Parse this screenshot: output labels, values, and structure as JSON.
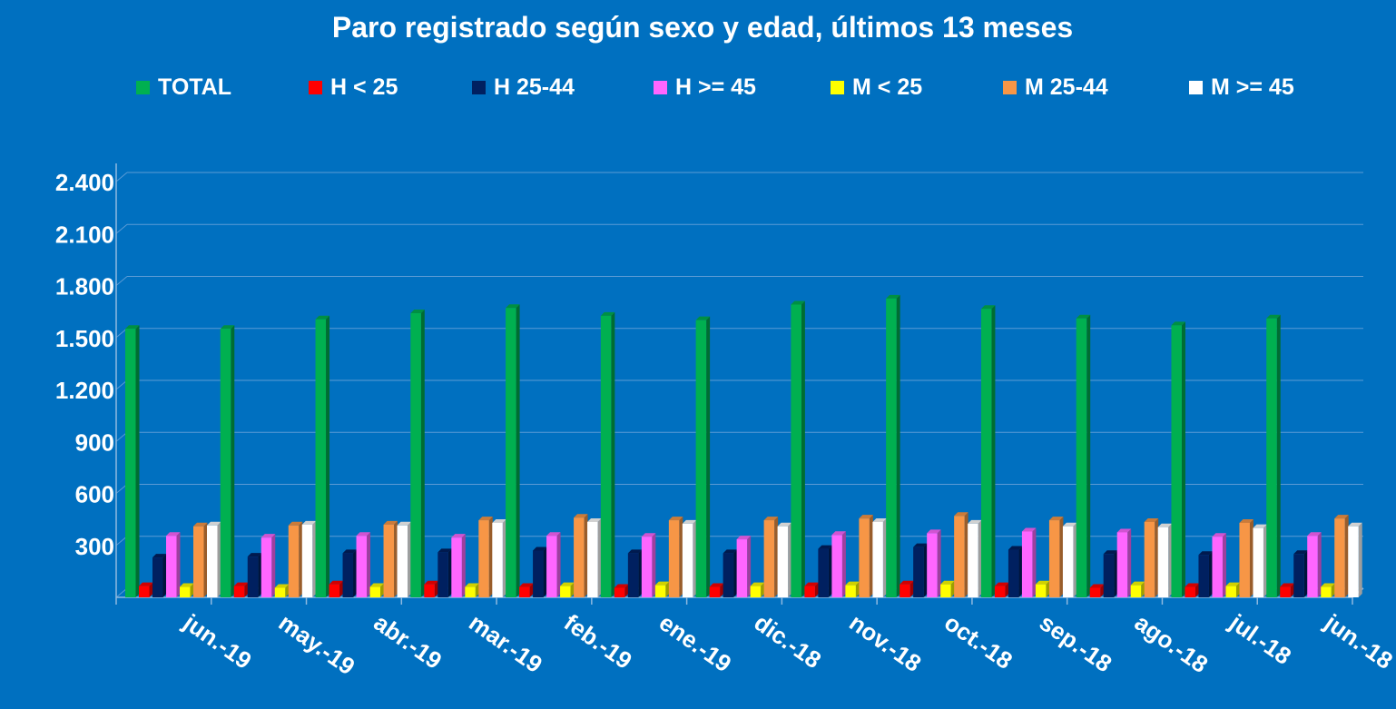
{
  "chart_data": {
    "type": "bar",
    "title": "Paro registrado según sexo y edad, últimos 13 meses",
    "categories": [
      "jun.-19",
      "may.-19",
      "abr.-19",
      "mar.-19",
      "feb.-19",
      "ene.-19",
      "dic.-18",
      "nov.-18",
      "oct.-18",
      "sep.-18",
      "ago.-18",
      "jul.-18",
      "jun.-18"
    ],
    "series": [
      {
        "name": "TOTAL",
        "color": "#00B050",
        "values": [
          1550,
          1550,
          1605,
          1640,
          1670,
          1625,
          1600,
          1690,
          1725,
          1665,
          1610,
          1570,
          1610
        ]
      },
      {
        "name": "H < 25",
        "color": "#FF0000",
        "values": [
          65,
          65,
          75,
          75,
          60,
          55,
          60,
          65,
          75,
          65,
          55,
          60,
          60
        ]
      },
      {
        "name": "H 25-44",
        "color": "#002060",
        "values": [
          230,
          235,
          255,
          260,
          270,
          255,
          255,
          280,
          290,
          275,
          250,
          245,
          250
        ]
      },
      {
        "name": "H >= 45",
        "color": "#FF66FF",
        "values": [
          355,
          345,
          355,
          345,
          355,
          350,
          335,
          360,
          370,
          380,
          375,
          350,
          355
        ]
      },
      {
        "name": "M < 25",
        "color": "#FFFF00",
        "values": [
          60,
          55,
          60,
          60,
          65,
          70,
          65,
          70,
          75,
          75,
          70,
          65,
          60
        ]
      },
      {
        "name": "M 25-44",
        "color": "#F79646",
        "values": [
          410,
          415,
          420,
          445,
          460,
          445,
          445,
          455,
          470,
          445,
          435,
          430,
          455
        ]
      },
      {
        "name": "M >= 45",
        "color": "#FFFFFF",
        "values": [
          415,
          420,
          415,
          430,
          435,
          425,
          410,
          435,
          425,
          410,
          405,
          400,
          410
        ]
      }
    ],
    "yticks": [
      "2.400",
      "2.100",
      "1.800",
      "1.500",
      "1.200",
      "900",
      "600",
      "300"
    ],
    "ylim": [
      0,
      2400
    ],
    "grid": true,
    "legend_position": "top"
  }
}
